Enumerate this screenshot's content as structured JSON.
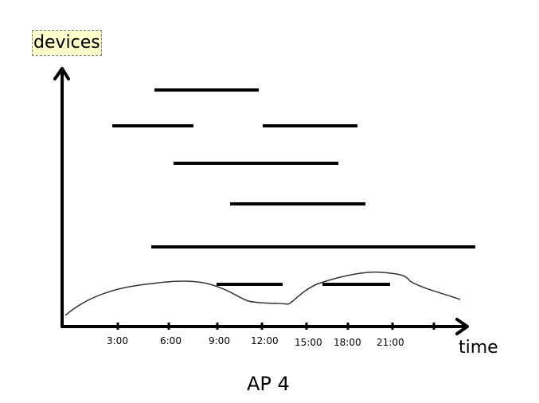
{
  "diagram": {
    "ylabel": "devices",
    "xlabel": "time",
    "caption": "AP 4",
    "tick_labels": [
      "3:00",
      "6:00",
      "9:00",
      "12:00",
      "15:00",
      "18:00",
      "21:00"
    ],
    "colors": {
      "lines": "#000000",
      "curve": "#333333",
      "label_highlight": "#ffffcc"
    }
  }
}
